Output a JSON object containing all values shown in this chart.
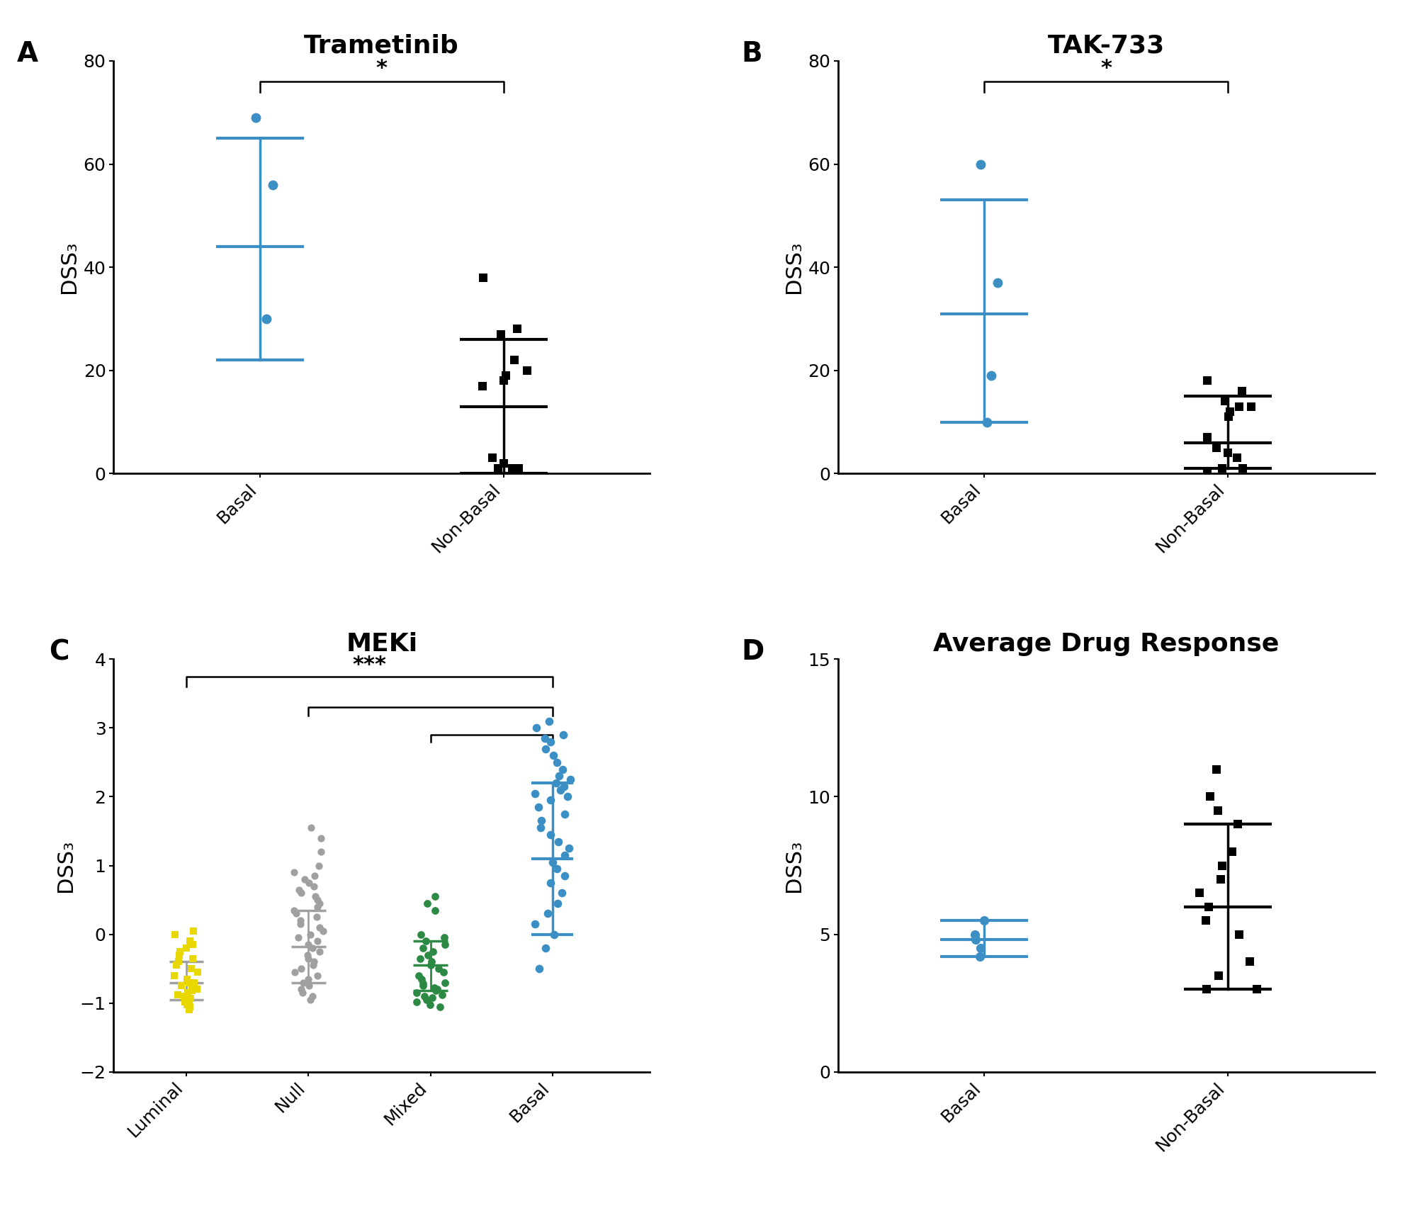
{
  "panel_A": {
    "title": "Trametinib",
    "basal_points": [
      69,
      56,
      30
    ],
    "basal_mean": 44,
    "basal_sd_upper": 65,
    "basal_sd_lower": 22,
    "nonbasal_points": [
      38,
      28,
      27,
      22,
      20,
      19,
      18,
      17,
      3,
      2,
      1,
      1,
      1
    ],
    "nonbasal_mean": 13,
    "nonbasal_sd_upper": 26,
    "nonbasal_sd_lower": 0,
    "ylim": [
      0,
      80
    ],
    "yticks": [
      0,
      20,
      40,
      60,
      80
    ],
    "color_basal": "#3b8fc4",
    "color_nonbasal": "#000000",
    "sig": "*"
  },
  "panel_B": {
    "title": "TAK-733",
    "basal_points": [
      60,
      37,
      19,
      10
    ],
    "basal_mean": 31,
    "basal_sd_upper": 53,
    "basal_sd_lower": 10,
    "nonbasal_points": [
      18,
      16,
      14,
      13,
      13,
      12,
      11,
      7,
      5,
      4,
      3,
      1,
      1,
      0
    ],
    "nonbasal_mean": 6,
    "nonbasal_sd_upper": 15,
    "nonbasal_sd_lower": 1,
    "ylim": [
      0,
      80
    ],
    "yticks": [
      0,
      20,
      40,
      60,
      80
    ],
    "color_basal": "#3b8fc4",
    "color_nonbasal": "#000000",
    "sig": "*"
  },
  "panel_C": {
    "title": "MEKi",
    "luminal_points": [
      0.05,
      0.0,
      -0.1,
      -0.15,
      -0.2,
      -0.25,
      -0.3,
      -0.35,
      -0.4,
      -0.45,
      -0.5,
      -0.55,
      -0.6,
      -0.65,
      -0.7,
      -0.7,
      -0.75,
      -0.75,
      -0.8,
      -0.82,
      -0.85,
      -0.88,
      -0.9,
      -0.93,
      -0.95,
      -0.98,
      -1.0,
      -1.02,
      -1.05,
      -1.1
    ],
    "luminal_mean": -0.7,
    "luminal_sd_upper": -0.4,
    "luminal_sd_lower": -0.95,
    "null_points": [
      1.55,
      1.4,
      1.2,
      1.0,
      0.9,
      0.85,
      0.8,
      0.75,
      0.7,
      0.65,
      0.6,
      0.55,
      0.5,
      0.45,
      0.4,
      0.35,
      0.3,
      0.25,
      0.2,
      0.15,
      0.1,
      0.05,
      0.0,
      -0.05,
      -0.1,
      -0.15,
      -0.2,
      -0.25,
      -0.3,
      -0.35,
      -0.4,
      -0.45,
      -0.5,
      -0.55,
      -0.6,
      -0.65,
      -0.7,
      -0.75,
      -0.8,
      -0.85,
      -0.9,
      -0.95
    ],
    "null_mean": -0.18,
    "null_sd_upper": 0.35,
    "null_sd_lower": -0.7,
    "mixed_points": [
      0.55,
      0.45,
      0.35,
      0.0,
      -0.05,
      -0.1,
      -0.15,
      -0.2,
      -0.25,
      -0.3,
      -0.35,
      -0.4,
      -0.45,
      -0.5,
      -0.55,
      -0.6,
      -0.65,
      -0.7,
      -0.72,
      -0.75,
      -0.78,
      -0.8,
      -0.82,
      -0.85,
      -0.88,
      -0.9,
      -0.92,
      -0.95,
      -0.98,
      -1.02,
      -1.05
    ],
    "mixed_mean": -0.45,
    "mixed_sd_upper": -0.1,
    "mixed_sd_lower": -0.82,
    "basal_points": [
      3.1,
      3.0,
      2.9,
      2.85,
      2.8,
      2.7,
      2.6,
      2.5,
      2.4,
      2.3,
      2.25,
      2.2,
      2.15,
      2.1,
      2.05,
      2.0,
      1.95,
      1.85,
      1.75,
      1.65,
      1.55,
      1.45,
      1.35,
      1.25,
      1.15,
      1.05,
      0.95,
      0.85,
      0.75,
      0.6,
      0.45,
      0.3,
      0.15,
      0.0,
      -0.2,
      -0.5
    ],
    "basal_mean": 1.1,
    "basal_sd_upper": 2.2,
    "basal_sd_lower": 0.0,
    "ylim": [
      -2,
      4
    ],
    "yticks": [
      -2,
      -1,
      0,
      1,
      2,
      3,
      4
    ],
    "color_luminal": "#e8d800",
    "color_null": "#a0a0a0",
    "color_mixed": "#2d8a45",
    "color_basal": "#3b8fc4",
    "sig": "***"
  },
  "panel_D": {
    "title": "Average Drug Response",
    "basal_points": [
      5.5,
      5.0,
      4.8,
      4.5,
      4.2
    ],
    "basal_mean": 4.8,
    "basal_sd_upper": 5.5,
    "basal_sd_lower": 4.2,
    "nonbasal_points": [
      11,
      10,
      9.5,
      9,
      8,
      7.5,
      7,
      6.5,
      6,
      5.5,
      5,
      4,
      3.5,
      3,
      3
    ],
    "nonbasal_mean": 6,
    "nonbasal_sd_upper": 9,
    "nonbasal_sd_lower": 3,
    "ylim": [
      0,
      15
    ],
    "yticks": [
      0,
      5,
      10,
      15
    ],
    "color_basal": "#3b8fc4",
    "color_nonbasal": "#000000"
  },
  "ylabel": "DSS₃",
  "bg_color": "#ffffff",
  "label_fontsize": 22,
  "tick_fontsize": 18,
  "title_fontsize": 26,
  "panel_label_fontsize": 28
}
